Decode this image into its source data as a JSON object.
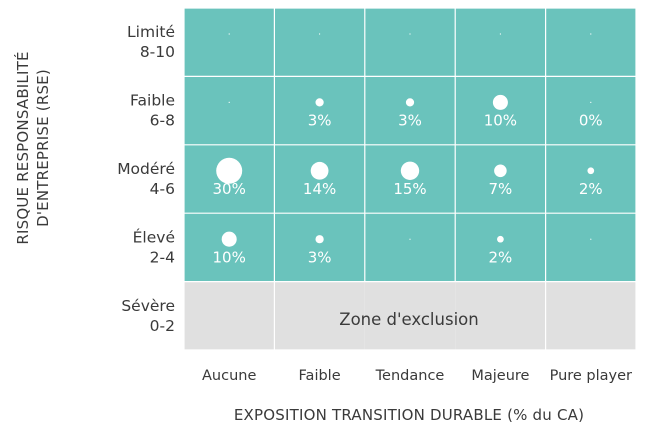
{
  "chart_data": {
    "type": "heatmap",
    "xlabel": "EXPOSITION TRANSITION DURABLE (% du CA)",
    "ylabel": "RISQUE RESPONSABILITÉ D'ENTREPRISE (RSE)",
    "columns": [
      "Aucune",
      "Faible",
      "Tendance",
      "Majeure",
      "Pure player"
    ],
    "rows": [
      {
        "name": "Limité",
        "range": "8-10"
      },
      {
        "name": "Faible",
        "range": "6-8"
      },
      {
        "name": "Modéré",
        "range": "4-6"
      },
      {
        "name": "Élevé",
        "range": "2-4"
      },
      {
        "name": "Sévère",
        "range": "0-2"
      }
    ],
    "cells": [
      [
        null,
        null,
        null,
        null,
        null
      ],
      [
        null,
        3,
        3,
        10,
        0
      ],
      [
        30,
        14,
        15,
        7,
        2
      ],
      [
        10,
        3,
        null,
        2,
        null
      ],
      [
        null,
        null,
        null,
        null,
        null
      ]
    ],
    "cell_labels": [
      [
        "",
        "",
        "",
        "",
        ""
      ],
      [
        "",
        "3%",
        "3%",
        "10%",
        "0%"
      ],
      [
        "30%",
        "14%",
        "15%",
        "7%",
        "2%"
      ],
      [
        "10%",
        "3%",
        "",
        "2%",
        ""
      ],
      [
        "",
        "",
        "",
        "",
        ""
      ]
    ],
    "exclusion_label": "Zone d'exclusion",
    "colors": {
      "cell": "#6ac3bc",
      "exclusion": "#e0e0e0",
      "bubble": "#ffffff",
      "grid": "#ffffff"
    }
  }
}
